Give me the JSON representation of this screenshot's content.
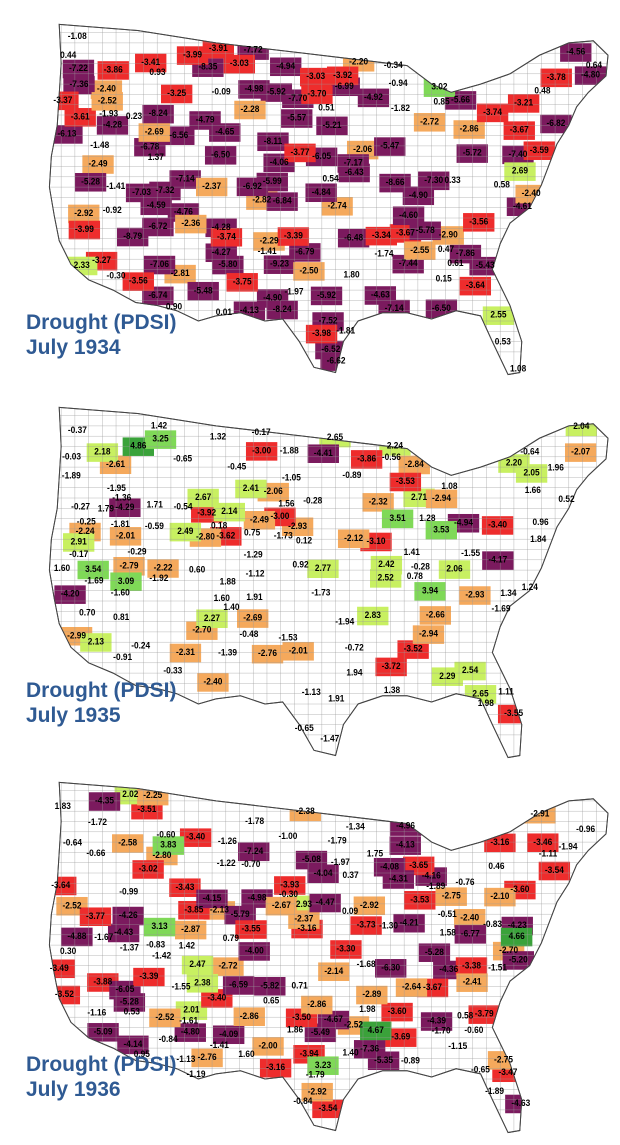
{
  "legend_colors": {
    "extreme_drought": "#7b1a5e",
    "severe_drought": "#ee2c2c",
    "moderate_drought": "#f5a95c",
    "near_normal": "#ffffff",
    "moderately_moist": "#c8f061",
    "very_moist": "#7fd957",
    "extremely_moist": "#3aa23a",
    "boundary": "#9a9a9a"
  },
  "panels": [
    {
      "title": "Drought (PDSI)",
      "subtitle": "July 1934",
      "labels": [
        "-2.49",
        "-3.78",
        "-2.82",
        "-1.82",
        "-5.92",
        "-5.21",
        "-0.30",
        "-4.65",
        "-2.06",
        "-2.90",
        "-2.40",
        "-3.67",
        "-6.82",
        "-5.99",
        "-4.90",
        "-4.06",
        "-3.25",
        "-2.81",
        "0.53",
        "-6.62",
        "-6.78",
        "-7.44",
        "-7.17",
        "-8.24",
        "-6.43",
        "-3.21",
        "0.64",
        "-2.55",
        "-7.14",
        "-6.74",
        "-5.92",
        "-7.14",
        "-6.13",
        "-8.24",
        "-7.72",
        "-9.23",
        "-5.78",
        "-6.56",
        "-1.08",
        "0.23",
        "-8.11",
        "-7.52",
        "-6.05",
        "-8.66",
        "-7.40",
        "-6.79",
        "-6.52",
        "-4.63",
        "-5.47",
        "0.15",
        "-0.34",
        "-7.03",
        "-8.79",
        "-7.06",
        "-6.50",
        "-4.61",
        "-7.22",
        "-7.70",
        "-6.92",
        "-6.84",
        "-4.98",
        "-3.27",
        "0.51",
        "-0.09",
        "-7.30",
        "-6.72",
        "-5.72",
        "-7.36",
        "-8.35",
        "-7.86",
        "-4.76",
        "-2.74",
        "-1.48",
        "-5.43",
        "-4.84",
        "-3.67",
        "-3.56",
        "-4.94",
        "-5.57",
        "-7.32",
        "-6.99",
        "-6.48",
        "-3.61",
        "-2.29",
        "-2.20",
        "-3.37",
        "-3.98",
        "-4.28",
        "-5.48",
        "-5.80",
        "-5.66",
        "-5.28",
        "-2.28",
        "-2.72",
        "-1.41",
        "0.48",
        "-3.75",
        "-4.28",
        "-3.70",
        "-4.92",
        "-6.50",
        "-4.80",
        "-4.59",
        "-2.50",
        "1.80",
        "0.93",
        "-2.86",
        "-4.79",
        "-4.27",
        "-4.60",
        "-4.56",
        "-3.03",
        "-3.86",
        "-3.91",
        "-2.92",
        "-2.37",
        "-2.40",
        "0.44",
        "-3.34",
        "-3.56",
        "-3.74",
        "-4.13",
        "-3.99",
        "-3.64",
        "-3.99",
        "-3.41",
        "-1.93",
        "-1.74",
        "0.61",
        "0.58",
        "-3.92",
        "-3.74",
        "-4.90",
        "-3.59",
        "-3.77",
        "-2.36",
        "0.54",
        "0.33",
        "-2.69",
        "-3.39",
        "-3.03",
        "-2.52",
        "1.37",
        "0.90",
        "-1.97",
        "-1.81",
        "2.55",
        "-1.41",
        "1.08",
        "-0.94",
        "0.47",
        "0.01",
        "0.85",
        "2.33",
        "3.02",
        "-0.92",
        "2.69"
      ]
    },
    {
      "title": "Drought (PDSI)",
      "subtitle": "July 1935",
      "labels": [
        "-1.88",
        "-1.73",
        "-1.69",
        "-1.55",
        "-1.69",
        "0.75",
        "1.42",
        "1.66",
        "-0.25",
        "-2.66",
        "-2.93",
        "-3.92",
        "-1.05",
        "1.84",
        "2.42",
        "1.24",
        "2.24",
        "-0.72",
        "-2.61",
        "-2.32",
        "-4.17",
        "-2.06",
        "-1.39",
        "2.71",
        "1.41",
        "1.88",
        "0.92",
        "1.96",
        "1.79",
        "-2.24",
        "-1.94",
        "-2.84",
        "-3.00",
        "-4.94",
        "-3.62",
        "-2.94",
        "2.52",
        "-1.95",
        "2.18",
        "2.65",
        "-2.07",
        "-0.65",
        "-1.36",
        "-0.27",
        "-3.72",
        "-2.76",
        "-1.89",
        "-2.01",
        "-1.92",
        "-2.49",
        "-2.79",
        "-2.99",
        "1.91",
        "1.28",
        "2.14",
        "1.38",
        "-1.29",
        "1.91",
        "-1.12",
        "-0.03",
        "-0.37",
        "2.65",
        "3.51",
        "-1.13",
        "-3.86",
        "-0.64",
        "-4.41",
        "-3.52",
        "-3.10",
        "2.77",
        "3.54",
        "-1.81",
        "-1.47",
        "1.56",
        "1.34",
        "2.04",
        "-0.28",
        "-0.29",
        "-2.80",
        "-2.94",
        "-1.53",
        "-2.93",
        "3.09",
        "2.29",
        "2.49",
        "2.91",
        "0.96",
        "0.70",
        "-2.70",
        "-4.20",
        "-4.29",
        "-3.40",
        "-2.12",
        "-0.45",
        "-0.17",
        "3.53",
        "3.94",
        "-1.60",
        "1.32",
        "-0.24",
        "2.27",
        "2.05",
        "1.94",
        "-2.22",
        "-3.53",
        "1.71",
        "-0.54",
        "2.41",
        "-2.69",
        "0.81",
        "2.54",
        "2.13",
        "-2.40",
        "2.20",
        "-2.31",
        "0.78",
        "1.60",
        "2.67",
        "-0.33",
        "-0.59",
        "1.98",
        "2.06",
        "0.18",
        "-0.91",
        "-3.55",
        "-0.65",
        "-0.89",
        "-0.48",
        "1.40",
        "2.83",
        "1.08",
        "0.60",
        "-3.00",
        "4.86",
        "3.25",
        "1.11",
        "0.52",
        "0.12",
        "1.60",
        "-0.28",
        "-2.01",
        "-0.56",
        "-0.17",
        "-1.73"
      ]
    },
    {
      "title": "Drought (PDSI)",
      "subtitle": "July 1936",
      "labels": [
        "-0.65",
        "2.01",
        "1.83",
        "-2.72",
        "-3.69",
        "-5.49",
        "-3.43",
        "-3.88",
        "-3.47",
        "-3.51",
        "-3.16",
        "2.93",
        "-2.40",
        "-3.40",
        "-6.59",
        "-4.23",
        "-1.97",
        "-2.13",
        "1.60",
        "-1.79",
        "-2.38",
        "-3.54",
        "-7.24",
        "-6.77",
        "-6.05",
        "-5.82",
        "-5.28",
        "-3.79",
        "-3.50",
        "-1.30",
        "-0.60",
        "-1.00",
        "-1.11",
        "-2.76",
        "-4.26",
        "-5.28",
        "-7.36",
        "-4.98",
        "-4.36",
        "-5.79",
        "-3.38",
        "-3.39",
        "-3.60",
        "-0.66",
        "-0.99",
        "-0.76",
        "-4.04",
        "-4.16",
        "-6.30",
        "-5.09",
        "-2.41",
        "-3.30",
        "-4.88",
        "-2.91",
        "0.37",
        "-0.83",
        "-1.37",
        "-1.55",
        "-2.14",
        "-3.46",
        "-4.09",
        "-3.65",
        "-3.93",
        "-3.16",
        "-2.86",
        "-2.52",
        "-1.42",
        "-3.54",
        "-4.08",
        "-4.67",
        "-3.67",
        "-2.67",
        "-3.49",
        "-2.89",
        "0.46",
        "-2.80",
        "-1.34",
        "-1.16",
        "1.42",
        "-0.60",
        "-2.92",
        "-5.35",
        "-3.53",
        "-5.08",
        "-4.96",
        "-3.73",
        "-1.89",
        "0.09",
        "-2.00",
        "-0.84",
        "0.30",
        "0.95",
        "0.53",
        "-2.70",
        "-3.85",
        "-4.80",
        "-5.20",
        "-2.87",
        "-4.00",
        "-3.55",
        "-2.58",
        "-1.15",
        "1.40",
        "-0.30",
        "0.71",
        "2.02",
        "-4.14",
        "-4.43",
        "-4.31",
        "-3.64",
        "-3.16",
        "-2.37",
        "-1.89",
        "-1.22",
        "1.75",
        "0.65",
        "-3.60",
        "-4.35",
        "-4.39",
        "-4.13",
        "-4.63",
        "-4.21",
        "-2.92",
        "-1.79",
        "1.86",
        "1.98",
        "-1.13",
        "-1.78",
        "-2.75",
        "-4.47",
        "-4.15",
        "-3.52",
        "-2.52",
        "-1.67",
        "0.58",
        "-1.26",
        "-0.64",
        "-3.77",
        "-3.94",
        "-2.86",
        "-2.10",
        "-1.94",
        "-2.64",
        "-3.02",
        "-3.40",
        "-2.25",
        "-1.51",
        "-0.89",
        "-1.19",
        "-0.84",
        "-2.75",
        "-2.52",
        "-1.61",
        "-0.83",
        "-0.51",
        "2.38",
        "-1.41",
        "-1.72",
        "-0.96",
        "4.67",
        "1.58",
        "-1.70",
        "3.23",
        "-0.70",
        "2.47",
        "-1.68",
        "3.83",
        "3.13",
        "0.79",
        "4.66"
      ]
    }
  ]
}
